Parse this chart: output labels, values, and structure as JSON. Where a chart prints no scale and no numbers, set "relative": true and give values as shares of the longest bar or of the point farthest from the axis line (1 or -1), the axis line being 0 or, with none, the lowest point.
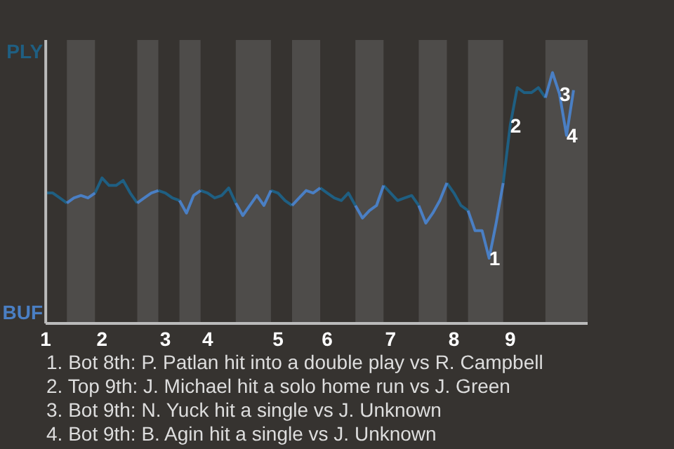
{
  "chart_data": {
    "type": "line",
    "relative": true,
    "categories": [
      "1",
      null,
      null,
      null,
      null,
      null,
      null,
      null,
      "2",
      null,
      null,
      null,
      null,
      null,
      null,
      null,
      null,
      "3",
      null,
      null,
      null,
      null,
      null,
      "4",
      null,
      null,
      null,
      null,
      null,
      null,
      null,
      null,
      null,
      "5",
      null,
      null,
      null,
      null,
      null,
      null,
      "6",
      null,
      null,
      null,
      null,
      null,
      null,
      null,
      null,
      "7",
      null,
      null,
      null,
      null,
      null,
      null,
      null,
      null,
      "8",
      null,
      null,
      null,
      null,
      null,
      null,
      null,
      "9",
      null,
      null,
      null,
      null,
      null,
      null,
      null,
      null,
      null
    ],
    "line_style": "solid",
    "series": [
      {
        "name": "PLY",
        "color": "#1f5f82",
        "values": [
          0.52,
          0.52,
          0.5,
          0.48,
          null,
          null,
          null,
          0.52,
          0.58,
          0.55,
          0.55,
          0.57,
          0.52,
          0.48,
          null,
          null,
          0.53,
          0.52,
          0.5,
          0.49,
          null,
          null,
          0.53,
          0.52,
          0.5,
          0.51,
          0.54,
          0.48,
          null,
          null,
          null,
          null,
          0.53,
          0.52,
          0.49,
          0.47,
          null,
          null,
          null,
          0.54,
          0.52,
          0.5,
          0.49,
          0.52,
          0.47,
          null,
          null,
          null,
          0.55,
          0.52,
          0.49,
          0.5,
          0.51,
          0.47,
          null,
          null,
          null,
          0.56,
          0.52,
          0.47,
          0.45,
          null,
          null,
          null,
          null,
          0.56,
          0.79,
          0.94,
          0.92,
          0.92,
          0.94,
          0.9,
          null,
          null,
          null,
          null
        ]
      },
      {
        "name": "BUF",
        "color": "#4a7fc4",
        "values": [
          null,
          null,
          null,
          0.48,
          0.5,
          0.51,
          0.5,
          0.52,
          null,
          null,
          null,
          null,
          null,
          0.48,
          0.5,
          0.52,
          0.53,
          null,
          null,
          0.49,
          0.44,
          0.51,
          0.53,
          null,
          null,
          null,
          null,
          0.48,
          0.43,
          0.47,
          0.51,
          0.47,
          0.53,
          null,
          null,
          0.47,
          0.5,
          0.53,
          0.52,
          0.54,
          null,
          null,
          null,
          null,
          0.47,
          0.42,
          0.45,
          0.47,
          0.55,
          null,
          null,
          null,
          null,
          0.47,
          0.4,
          0.44,
          0.49,
          0.56,
          null,
          null,
          0.45,
          0.37,
          0.37,
          0.26,
          0.4,
          0.56,
          null,
          null,
          null,
          null,
          null,
          0.9,
          1,
          0.915,
          0.75,
          0.93
        ]
      }
    ],
    "annotations": [
      {
        "text": "1",
        "y": 0.26
      },
      {
        "text": "2",
        "y": 0.79
      },
      {
        "text": "3",
        "y": 0.915
      },
      {
        "text": "4",
        "y": 0.75
      },
      "1. Bot 8th: P. Patlan hit into a double play vs R. Campbell",
      "2. Top 9th: J. Michael hit a solo home run vs J. Green",
      "3. Bot 9th: N. Yuck hit a single vs J. Unknown",
      "4. Bot 9th: B. Agin hit a single vs J. Unknown"
    ]
  }
}
